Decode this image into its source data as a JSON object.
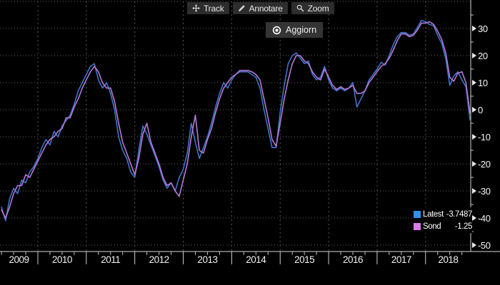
{
  "toolbar": {
    "buttons": [
      {
        "label": "Track",
        "icon": "move-crosshair-icon"
      },
      {
        "label": "Annotare",
        "icon": "pencil-icon"
      },
      {
        "label": "Zoom",
        "icon": "magnifier-icon"
      }
    ],
    "refresh_button": {
      "label": "Aggiorn",
      "icon": "record-circle-icon"
    }
  },
  "legend": {
    "rows": [
      {
        "label": "Latest",
        "value": "-3.7487",
        "swatch_color": "#2e93ea"
      },
      {
        "label": "Sond",
        "value": "-1.25",
        "swatch_color": "#da7ce8"
      }
    ]
  },
  "colors": {
    "background": "#000000",
    "grid": "#666666",
    "axis": "#d8d8d8",
    "latest_line": "#3e74c8",
    "sond_line": "#b678d8"
  },
  "chart_data": {
    "type": "line",
    "title": "",
    "x_interval": "monthly",
    "x_start": "2009-04",
    "x_end": "2018-12",
    "x_tick_years": [
      2009,
      2010,
      2011,
      2012,
      2013,
      2014,
      2015,
      2016,
      2017,
      2018
    ],
    "y_ticks": [
      30,
      20,
      10,
      0,
      -10,
      -20,
      -30,
      -40,
      -50
    ],
    "ylim": [
      -52.5,
      40
    ],
    "grid": "dotted",
    "legend_position": "bottom-right",
    "series": [
      {
        "name": "Latest",
        "color": "#3e74c8",
        "last_value": -3.7487,
        "values": [
          -36,
          -41,
          -33,
          -29,
          -31,
          -26,
          -27,
          -23,
          -21,
          -18,
          -14,
          -11,
          -13,
          -8,
          -10,
          -6,
          -4,
          -2,
          2,
          7,
          10,
          13,
          16,
          17,
          11,
          8,
          10,
          6,
          0,
          -10,
          -15,
          -18,
          -23,
          -25,
          -15,
          -6,
          -9,
          -13,
          -17,
          -21,
          -26,
          -29,
          -27,
          -30,
          -25,
          -22,
          -16,
          -5,
          -12,
          -18,
          -14,
          -10,
          -5,
          1,
          6,
          10,
          8,
          11,
          13,
          14,
          14,
          14,
          13,
          12,
          8,
          0,
          -7,
          -14,
          -14,
          -1,
          9,
          17,
          20,
          21,
          19,
          17,
          18,
          13,
          11,
          12,
          16,
          11,
          8,
          7,
          8,
          7,
          8,
          10,
          1,
          4,
          7,
          11,
          13,
          15,
          17.5,
          16.5,
          20,
          24,
          27,
          28.5,
          28.5,
          27.5,
          28,
          30.5,
          33,
          32.5,
          31.5,
          31,
          27.5,
          24.5,
          19,
          9,
          12.5,
          14,
          11,
          8.5,
          -3.7487
        ]
      },
      {
        "name": "Sond",
        "color": "#b678d8",
        "last_value": -1.25,
        "values": [
          -37,
          -40,
          -36,
          -31,
          -28,
          -28,
          -24,
          -25,
          -22,
          -19,
          -16,
          -13,
          -11,
          -10,
          -8,
          -7,
          -3,
          -3,
          1,
          4,
          8,
          11,
          14,
          16,
          14,
          10,
          8,
          8,
          3,
          -5,
          -12,
          -16,
          -20,
          -24,
          -18,
          -9,
          -5,
          -12,
          -16,
          -20,
          -25,
          -28,
          -27,
          -30,
          -32,
          -26,
          -20,
          -10,
          -2,
          -15,
          -16,
          -11,
          -7,
          -1,
          4,
          8,
          10,
          12,
          13,
          14.5,
          14.5,
          14.5,
          14,
          13,
          11,
          4,
          -3,
          -11,
          -13.5,
          -5,
          4,
          11,
          17,
          20,
          20,
          18,
          17,
          14,
          12,
          11,
          15,
          12,
          9,
          7.5,
          8.5,
          7.5,
          8,
          9,
          6,
          6,
          7,
          10,
          12,
          14,
          16,
          17,
          19,
          22,
          25.5,
          28,
          28,
          27,
          27.5,
          29.5,
          32,
          32,
          32.5,
          31.5,
          29,
          26,
          21,
          12,
          10.5,
          13.5,
          14,
          10,
          -1.25
        ]
      }
    ]
  }
}
